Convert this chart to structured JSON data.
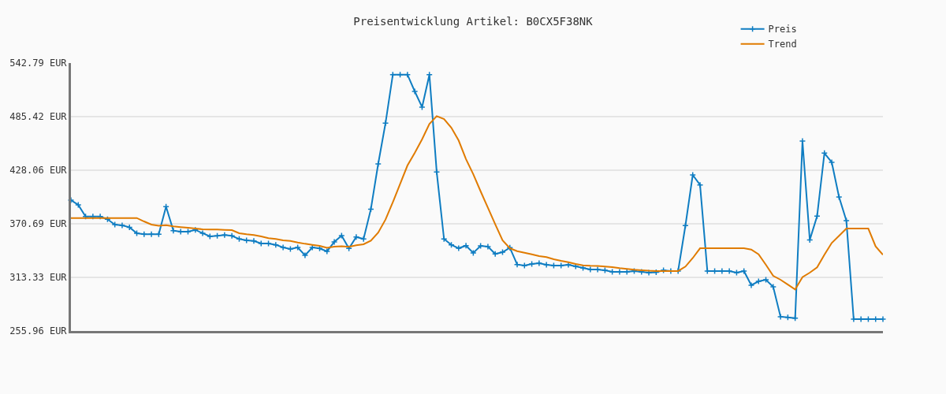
{
  "chart_data": {
    "type": "line",
    "title": "Preisentwicklung Artikel: B0CX5F38NK",
    "categories": [
      null,
      null,
      null,
      null,
      null,
      null,
      null,
      null,
      null,
      null,
      null,
      null,
      null,
      null,
      null,
      null,
      null,
      null,
      null,
      null,
      null,
      null,
      null,
      null,
      null,
      null,
      null,
      null,
      null,
      null,
      null,
      null,
      null,
      null,
      null,
      null,
      null,
      null,
      null,
      null,
      null,
      null,
      null,
      null,
      null,
      null,
      null,
      null,
      null,
      null,
      null,
      null,
      null,
      null,
      null,
      null,
      null,
      null,
      null,
      null,
      null,
      null,
      null,
      null,
      null,
      null,
      null,
      null,
      null,
      null,
      null,
      null,
      null,
      null,
      null,
      null,
      null,
      null,
      null,
      null,
      null,
      null,
      null,
      null,
      null,
      null,
      null,
      null,
      null,
      null,
      null,
      null,
      null,
      null,
      null,
      null,
      null,
      null,
      null,
      null,
      null,
      null,
      null,
      null,
      null,
      null,
      null,
      null,
      null,
      null,
      null,
      null
    ],
    "series": [
      {
        "name": "Preis",
        "color": "#0f7dc2",
        "marker": "cross",
        "values": [
          396.0,
          391.0,
          378.5,
          378.5,
          378.5,
          375.5,
          369.9,
          369.0,
          367.0,
          360.6,
          359.5,
          359.5,
          359.5,
          389.0,
          363.4,
          362.3,
          362.3,
          364.2,
          360.6,
          357.2,
          357.8,
          358.7,
          357.8,
          354.4,
          353.0,
          352.3,
          349.6,
          349.6,
          348.2,
          345.4,
          343.7,
          345.4,
          337.0,
          345.4,
          344.3,
          341.2,
          351.3,
          358.0,
          344.3,
          356.6,
          354.4,
          386.4,
          434.8,
          478.4,
          530.4,
          530.4,
          530.4,
          512.4,
          495.6,
          530.4,
          426.1,
          354.4,
          348.2,
          344.5,
          347.3,
          339.5,
          347.1,
          346.3,
          338.4,
          340.3,
          345.1,
          327.1,
          326.0,
          327.7,
          328.5,
          326.8,
          326.0,
          326.0,
          326.8,
          325.2,
          323.5,
          321.8,
          321.8,
          320.9,
          319.2,
          319.2,
          319.2,
          320.1,
          319.2,
          318.4,
          318.9,
          320.9,
          320.1,
          320.1,
          368.8,
          423.0,
          412.3,
          320.1,
          320.1,
          320.1,
          320.1,
          318.4,
          320.1,
          304.9,
          309.1,
          310.8,
          303.2,
          271.2,
          270.6,
          269.6,
          459.3,
          353.5,
          378.9,
          446.4,
          436.5,
          399.4,
          374.1,
          268.6,
          268.6,
          268.6,
          268.6,
          268.6
        ]
      },
      {
        "name": "Trend",
        "color": "#e07b00",
        "marker": "none",
        "values": [
          376.9,
          376.9,
          376.9,
          376.9,
          376.9,
          376.9,
          376.9,
          376.9,
          376.9,
          376.9,
          373.2,
          369.9,
          368.5,
          369.3,
          368.0,
          367.2,
          366.5,
          365.6,
          364.8,
          364.5,
          364.5,
          364.2,
          363.9,
          360.6,
          359.5,
          358.7,
          357.2,
          355.3,
          354.4,
          353.0,
          352.3,
          350.7,
          349.3,
          348.2,
          347.1,
          344.9,
          346.3,
          346.6,
          346.0,
          347.7,
          348.8,
          352.7,
          361.2,
          375.2,
          393.7,
          413.5,
          433.1,
          446.6,
          461.2,
          477.6,
          486.0,
          482.9,
          473.6,
          459.9,
          440.0,
          423.8,
          405.5,
          387.8,
          370.1,
          353.0,
          344.5,
          341.4,
          339.7,
          338.0,
          336.1,
          335.0,
          332.7,
          331.0,
          329.6,
          327.7,
          326.2,
          325.7,
          325.5,
          325.0,
          324.2,
          323.2,
          322.4,
          321.5,
          320.9,
          320.4,
          320.1,
          320.1,
          320.1,
          320.1,
          324.9,
          334.0,
          344.5,
          344.5,
          344.5,
          344.5,
          344.5,
          344.5,
          344.5,
          343.1,
          338.0,
          326.8,
          315.0,
          310.8,
          305.7,
          300.4,
          313.6,
          318.4,
          324.0,
          337.5,
          350.2,
          357.8,
          365.6,
          365.6,
          365.6,
          365.6,
          346.5,
          337.5
        ]
      }
    ],
    "ylim": [
      255.96,
      542.79
    ],
    "yticks": [
      {
        "value": 255.96,
        "label": "255.96 EUR"
      },
      {
        "value": 313.33,
        "label": "313.33 EUR"
      },
      {
        "value": 370.69,
        "label": "370.69 EUR"
      },
      {
        "value": 428.06,
        "label": "428.06 EUR"
      },
      {
        "value": 485.42,
        "label": "485.42 EUR"
      },
      {
        "value": 542.79,
        "label": "542.79 EUR"
      }
    ],
    "grid": "y",
    "legend": "top right",
    "line_style": "solid"
  }
}
